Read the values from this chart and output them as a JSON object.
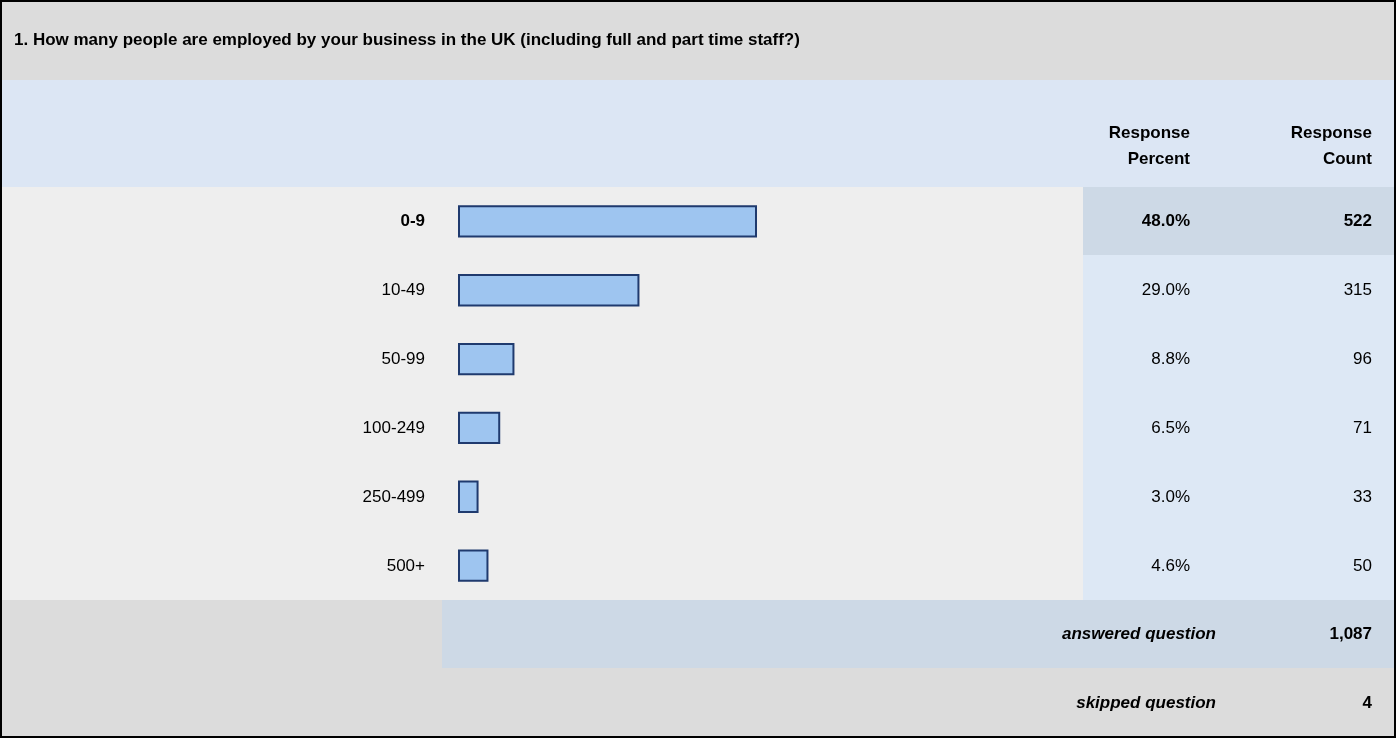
{
  "chart_data": {
    "type": "bar",
    "orientation": "horizontal",
    "title": "1. How many people are employed by your business in the UK (including full and part time staff?)",
    "categories": [
      "0-9",
      "10-49",
      "50-99",
      "100-249",
      "250-499",
      "500+"
    ],
    "values": [
      48.0,
      29.0,
      8.8,
      6.5,
      3.0,
      4.6
    ],
    "value_labels": [
      "48.0%",
      "29.0%",
      "8.8%",
      "6.5%",
      "3.0%",
      "4.6%"
    ],
    "color": "#9ec5f0",
    "tick_labels": "y",
    "annotations": [
      "Response Percent",
      "Response Count",
      "522",
      "315",
      "96",
      "71",
      "33",
      "50",
      "answered question",
      "1,087",
      "skipped question",
      "4"
    ]
  }
}
